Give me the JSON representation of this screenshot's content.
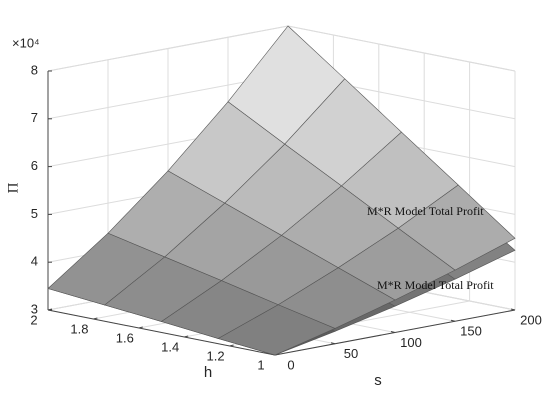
{
  "chart_data": {
    "type": "surface3d",
    "xlabel": "s",
    "ylabel": "h",
    "zlabel": "Π",
    "z_multiplier": "×10⁴",
    "x": [
      0,
      50,
      100,
      150,
      200
    ],
    "y": [
      1,
      1.25,
      1.5,
      1.75,
      2
    ],
    "xlim": [
      0,
      200
    ],
    "ylim": [
      1,
      2
    ],
    "zlim": [
      3,
      8
    ],
    "xticks": [
      0,
      50,
      100,
      150,
      200
    ],
    "yticks": [
      1,
      1.2,
      1.4,
      1.6,
      1.8,
      2
    ],
    "zticks": [
      3,
      4,
      5,
      6,
      7,
      8
    ],
    "grid": true,
    "series": [
      {
        "name": "M*R Model Total Profit",
        "color": "#9a9a9a",
        "z": [
          [
            3.0,
            3.26,
            3.55,
            3.88,
            4.25
          ],
          [
            3.11,
            3.5,
            3.95,
            4.46,
            5.04
          ],
          [
            3.23,
            3.74,
            4.35,
            5.04,
            5.83
          ],
          [
            3.34,
            3.98,
            4.74,
            5.62,
            6.62
          ],
          [
            3.45,
            4.22,
            5.14,
            6.2,
            7.4
          ]
        ]
      },
      {
        "name": "M*R Model Total Profit",
        "color": "#d8d8d8",
        "z": [
          [
            3.0,
            3.32,
            3.68,
            4.07,
            4.5
          ],
          [
            3.11,
            3.58,
            4.12,
            4.71,
            5.38
          ],
          [
            3.23,
            3.85,
            4.56,
            5.36,
            6.25
          ],
          [
            3.34,
            4.11,
            5.0,
            6.0,
            7.13
          ],
          [
            3.45,
            4.37,
            5.44,
            6.65,
            8.0
          ]
        ]
      }
    ]
  }
}
